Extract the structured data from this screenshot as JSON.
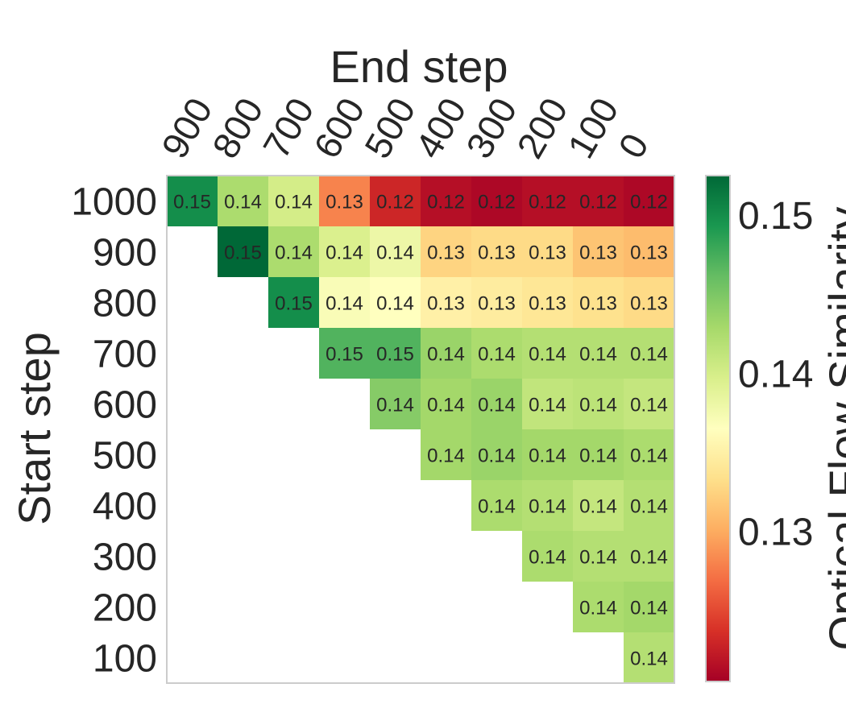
{
  "chart_data": {
    "type": "heatmap",
    "xlabel": "End step",
    "ylabel": "Start step",
    "x_categories": [
      "900",
      "800",
      "700",
      "600",
      "500",
      "400",
      "300",
      "200",
      "100",
      "0"
    ],
    "y_categories": [
      "1000",
      "900",
      "800",
      "700",
      "600",
      "500",
      "400",
      "300",
      "200",
      "100"
    ],
    "values": [
      [
        0.15,
        0.1425,
        0.14,
        0.128,
        0.123,
        0.1215,
        0.121,
        0.1215,
        0.1215,
        0.121
      ],
      [
        null,
        0.1525,
        0.1425,
        0.1395,
        0.138,
        0.1325,
        0.133,
        0.133,
        0.1315,
        0.131
      ],
      [
        null,
        null,
        0.15,
        0.137,
        0.1365,
        0.135,
        0.1345,
        0.134,
        0.1335,
        0.133
      ],
      [
        null,
        null,
        null,
        0.147,
        0.147,
        0.1435,
        0.1425,
        0.142,
        0.142,
        0.142
      ],
      [
        null,
        null,
        null,
        null,
        0.1445,
        0.143,
        0.1435,
        0.1412,
        0.1415,
        0.141
      ],
      [
        null,
        null,
        null,
        null,
        null,
        0.143,
        0.1435,
        0.143,
        0.143,
        0.1425
      ],
      [
        null,
        null,
        null,
        null,
        null,
        null,
        0.1425,
        0.142,
        0.141,
        0.142
      ],
      [
        null,
        null,
        null,
        null,
        null,
        null,
        null,
        0.1425,
        0.142,
        0.142
      ],
      [
        null,
        null,
        null,
        null,
        null,
        null,
        null,
        null,
        0.1425,
        0.143
      ],
      [
        null,
        null,
        null,
        null,
        null,
        null,
        null,
        null,
        null,
        0.142
      ]
    ],
    "labels": [
      [
        "0.15",
        "0.14",
        "0.14",
        "0.13",
        "0.12",
        "0.12",
        "0.12",
        "0.12",
        "0.12",
        "0.12"
      ],
      [
        "",
        "0.15",
        "0.14",
        "0.14",
        "0.14",
        "0.13",
        "0.13",
        "0.13",
        "0.13",
        "0.13"
      ],
      [
        "",
        "",
        "0.15",
        "0.14",
        "0.14",
        "0.13",
        "0.13",
        "0.13",
        "0.13",
        "0.13"
      ],
      [
        "",
        "",
        "",
        "0.15",
        "0.15",
        "0.14",
        "0.14",
        "0.14",
        "0.14",
        "0.14"
      ],
      [
        "",
        "",
        "",
        "",
        "0.14",
        "0.14",
        "0.14",
        "0.14",
        "0.14",
        "0.14"
      ],
      [
        "",
        "",
        "",
        "",
        "",
        "0.14",
        "0.14",
        "0.14",
        "0.14",
        "0.14"
      ],
      [
        "",
        "",
        "",
        "",
        "",
        "",
        "0.14",
        "0.14",
        "0.14",
        "0.14"
      ],
      [
        "",
        "",
        "",
        "",
        "",
        "",
        "",
        "0.14",
        "0.14",
        "0.14"
      ],
      [
        "",
        "",
        "",
        "",
        "",
        "",
        "",
        "",
        "0.14",
        "0.14"
      ],
      [
        "",
        "",
        "",
        "",
        "",
        "",
        "",
        "",
        "",
        "0.14"
      ]
    ],
    "colorbar": {
      "label": "Optical Flow Similarity",
      "range": [
        0.1205,
        0.1525
      ],
      "ticks": [
        0.13,
        0.14,
        0.15
      ],
      "tick_labels": [
        "0.13",
        "0.14",
        "0.15"
      ],
      "colormap": "RdYlGn",
      "colormap_stops": [
        "#a50026",
        "#d73027",
        "#f46d43",
        "#fdae61",
        "#fee08b",
        "#ffffbf",
        "#d9ef8b",
        "#a6d96a",
        "#66bd63",
        "#1a9850",
        "#006837"
      ]
    },
    "grid": false
  }
}
